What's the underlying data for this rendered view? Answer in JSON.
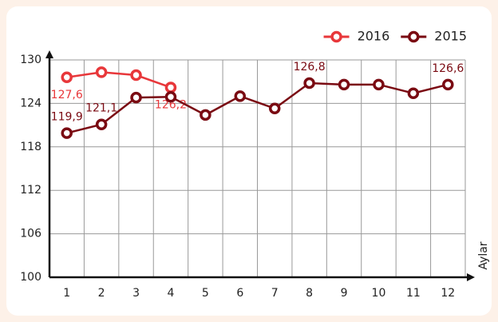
{
  "chart_data": {
    "type": "line",
    "x_label": "Aylar",
    "categories": [
      "1",
      "2",
      "3",
      "4",
      "5",
      "6",
      "7",
      "8",
      "9",
      "10",
      "11",
      "12"
    ],
    "series": [
      {
        "name": "2016",
        "color": "#e8373a",
        "values": [
          127.6,
          128.3,
          127.9,
          126.2,
          null,
          null,
          null,
          null,
          null,
          null,
          null,
          null
        ],
        "value_labels": [
          "127,6",
          null,
          null,
          "126,2",
          null,
          null,
          null,
          null,
          null,
          null,
          null,
          null
        ]
      },
      {
        "name": "2015",
        "color": "#7a0a12",
        "values": [
          119.9,
          121.1,
          124.8,
          124.9,
          122.4,
          125.0,
          123.3,
          126.8,
          126.6,
          126.6,
          125.4,
          126.6
        ],
        "value_labels": [
          "119,9",
          "121,1",
          null,
          null,
          null,
          null,
          null,
          "126,8",
          null,
          null,
          null,
          "126,6"
        ]
      }
    ],
    "ylim": [
      100,
      130
    ],
    "yticks": [
      100,
      106,
      112,
      118,
      124,
      130
    ],
    "grid": true,
    "legend": "top-right"
  }
}
